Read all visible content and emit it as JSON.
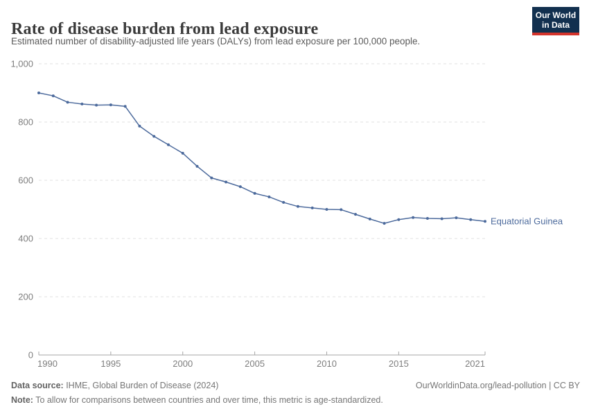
{
  "header": {
    "title": "Rate of disease burden from lead exposure",
    "subtitle": "Estimated number of disability-adjusted life years (DALYs) from lead exposure per 100,000 people.",
    "logo": {
      "line1": "Our World",
      "line2": "in Data",
      "bg_color": "#12304f",
      "accent_color": "#d4342c"
    }
  },
  "chart_data": {
    "type": "line",
    "title": "Rate of disease burden from lead exposure",
    "xlabel": "",
    "ylabel": "DALYs from lead exposure per 100,000 people",
    "ylim": [
      0,
      1000
    ],
    "yticks": [
      0,
      200,
      400,
      600,
      800,
      1000
    ],
    "xticks": [
      1990,
      1995,
      2000,
      2005,
      2010,
      2015,
      2021
    ],
    "grid": "horizontal-dashed",
    "legend_position": "end-of-line-label",
    "x": [
      1990,
      1991,
      1992,
      1993,
      1994,
      1995,
      1996,
      1997,
      1998,
      1999,
      2000,
      2001,
      2002,
      2003,
      2004,
      2005,
      2006,
      2007,
      2008,
      2009,
      2010,
      2011,
      2012,
      2013,
      2014,
      2015,
      2016,
      2017,
      2018,
      2019,
      2020,
      2021
    ],
    "series": [
      {
        "name": "Equatorial Guinea",
        "color": "#4c6a9c",
        "values": [
          900,
          890,
          868,
          862,
          858,
          859,
          854,
          786,
          751,
          722,
          693,
          648,
          608,
          594,
          578,
          555,
          543,
          524,
          510,
          505,
          500,
          499,
          483,
          467,
          452,
          465,
          472,
          469,
          468,
          471,
          465,
          459
        ]
      }
    ],
    "axis_color": "#a5a5a5",
    "grid_color": "#e0e0e0",
    "tick_label_color": "#7d7d7d"
  },
  "footer": {
    "datasource_label": "Data source:",
    "datasource_value": " IHME, Global Burden of Disease (2024)",
    "rights": "OurWorldinData.org/lead-pollution | CC BY",
    "note_label": "Note:",
    "note_value": " To allow for comparisons between countries and over time, this metric is age-standardized."
  }
}
